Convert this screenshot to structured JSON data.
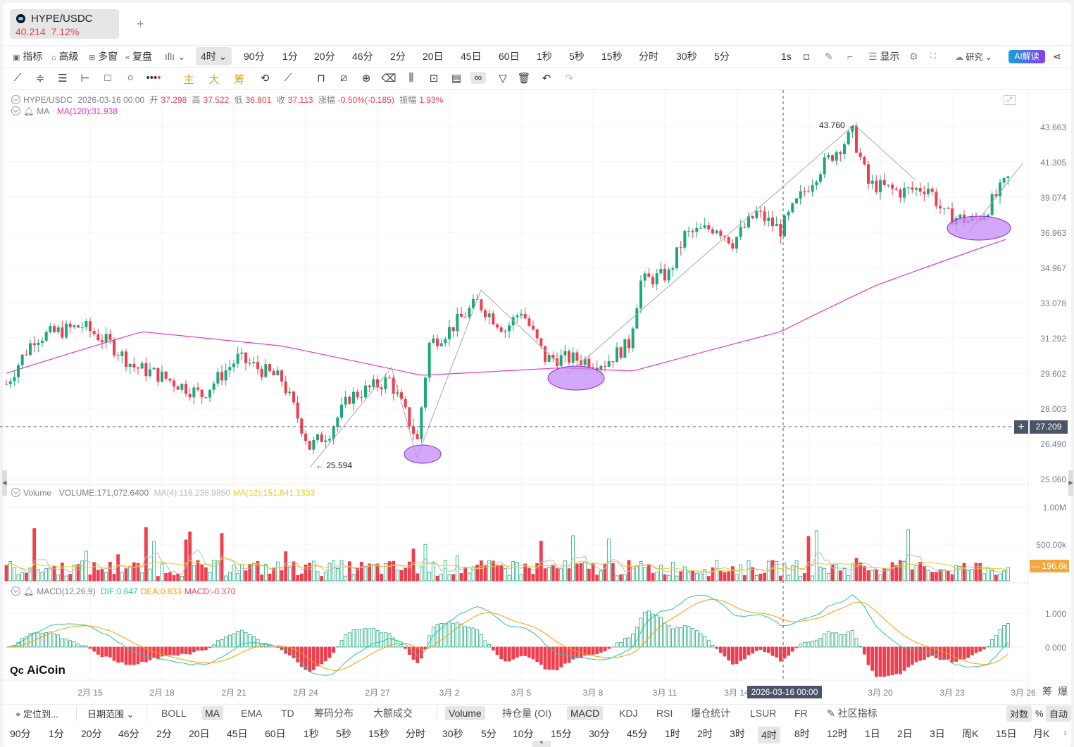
{
  "tab": {
    "symbol": "HYPE/USDC",
    "price": "40.214",
    "change": "7.12%",
    "add": "+"
  },
  "toolbar": {
    "left": [
      {
        "icon": "indicator-icon",
        "label": "指标"
      },
      {
        "icon": "advanced-icon",
        "label": "高级"
      },
      {
        "icon": "multi-window-icon",
        "label": "多窗"
      },
      {
        "icon": "replay-icon",
        "label": "复盘"
      }
    ],
    "chart_type_icon": "candle-type-icon",
    "interval_selected": "4时",
    "intervals": [
      "90分",
      "1分",
      "20分",
      "46分",
      "2分",
      "20日",
      "45日",
      "60日",
      "1秒",
      "5秒",
      "15秒",
      "分时",
      "30秒",
      "5分"
    ],
    "right": {
      "1s": "1s",
      "display": "显示",
      "research": "研究",
      "ai": "AI解读"
    }
  },
  "drawing_tools": {
    "main": "主",
    "big": "大",
    "chips": "筹"
  },
  "legend": {
    "symbol": "HYPE/USDC",
    "time": "2026-03-16 00:00",
    "open_label": "开",
    "open": "37.298",
    "high_label": "高",
    "high": "37.522",
    "low_label": "低",
    "low": "36.801",
    "close_label": "收",
    "close": "37.113",
    "change_label": "涨幅",
    "change": "-0.50%(-0.185)",
    "amp_label": "振幅",
    "amp": "1.93%",
    "ma_label": "MA",
    "ma120": "MA(120):31.938"
  },
  "volume_legend": {
    "label": "Volume",
    "volume": "VOLUME:171,072.6400",
    "ma4": "MA(4):116,238.9850",
    "ma12": "MA(12):151,841.1333"
  },
  "macd_legend": {
    "label": "MACD(12,26,9)",
    "dif": "DIF:0.647",
    "dea": "DEA:0.833",
    "macd": "MACD:-0.370"
  },
  "price_axis": [
    "43.663",
    "41.305",
    "39.074",
    "36.963",
    "34.967",
    "33.078",
    "31.292",
    "29.602",
    "28.003",
    "26.490",
    "25.060"
  ],
  "volume_axis": [
    "1.00M",
    "500.00k"
  ],
  "macd_axis": [
    "1.000",
    "0.000"
  ],
  "crosshair": {
    "price": "27.209",
    "time": "2026-03-16 00:00",
    "volume": "196.6k"
  },
  "annotations": {
    "high": "43.760 →",
    "low": "← 25.594"
  },
  "date_axis": [
    "2月 15",
    "2月 18",
    "2月 21",
    "2月 24",
    "2月 27",
    "3月 2",
    "3月 5",
    "3月 8",
    "3月 11",
    "3月 14",
    "3月 20",
    "3月 23",
    "3月 26"
  ],
  "axis_buttons": {
    "chips": "筹",
    "liq": "爆"
  },
  "watermark": "AiCoin",
  "bottom_indicators": {
    "locate": "定位到...",
    "range": "日期范围",
    "items": [
      "BOLL",
      "MA",
      "EMA",
      "TD",
      "筹码分布",
      "大额成交"
    ],
    "sub": [
      "Volume",
      "持仓量 (OI)",
      "MACD",
      "KDJ",
      "RSI",
      "爆仓统计",
      "LSUR",
      "FR"
    ],
    "community": "社区指标",
    "log": "对数",
    "pct": "%",
    "auto": "自动"
  },
  "bottom_intervals": [
    "90分",
    "1分",
    "20分",
    "46分",
    "2分",
    "20日",
    "45日",
    "60日",
    "1秒",
    "5秒",
    "15秒",
    "分时",
    "30秒",
    "5分",
    "10分",
    "15分",
    "30分",
    "45分",
    "1时",
    "2时",
    "3时",
    "4时",
    "8时",
    "12时",
    "1日",
    "2日",
    "3日",
    "周K",
    "15日",
    "月K"
  ],
  "colors": {
    "up": "#1aa97c",
    "down": "#ef3f4f",
    "ma120": "#e33cc1",
    "ma4": "#bbbbbb",
    "ma12": "#e6d21a",
    "dif": "#2bc6a0",
    "dea": "#f5a000",
    "highlight": "#c58bf5"
  },
  "chart_data": {
    "type": "candlestick",
    "scale": "log",
    "interval": "4h",
    "year": 2026,
    "price_path": [
      [
        "02-11 12",
        29.1
      ],
      [
        "02-12 16",
        31.3
      ],
      [
        "02-14 16",
        31.9
      ],
      [
        "02-15 20",
        31.0
      ],
      [
        "02-16 20",
        29.9
      ],
      [
        "02-17 16",
        29.6
      ],
      [
        "02-19 16",
        28.6
      ],
      [
        "02-21 04",
        30.3
      ],
      [
        "02-23 00",
        29.3
      ],
      [
        "02-24 04",
        26.35
      ],
      [
        "02-25 00",
        27.0
      ],
      [
        "02-25 20",
        28.5
      ],
      [
        "02-27 12",
        29.3
      ],
      [
        "02-28 08",
        27.4
      ],
      [
        "02-28 16",
        26.6
      ],
      [
        "03-01 04",
        31.0
      ],
      [
        "03-02 00",
        31.7
      ],
      [
        "03-03 04",
        33.1
      ],
      [
        "03-04 08",
        31.7
      ],
      [
        "03-05 00",
        32.7
      ],
      [
        "03-06 00",
        30.3
      ],
      [
        "03-07 00",
        30.3
      ],
      [
        "03-08 12",
        30.1
      ],
      [
        "03-09 12",
        31.0
      ],
      [
        "03-10 00",
        34.2
      ],
      [
        "03-11 04",
        34.6
      ],
      [
        "03-11 20",
        36.8
      ],
      [
        "03-13 04",
        37.3
      ],
      [
        "03-13 20",
        36.4
      ],
      [
        "03-14 20",
        38.1
      ],
      [
        "03-15 20",
        37.1
      ],
      [
        "03-16 16",
        39.1
      ],
      [
        "03-17 12",
        40.9
      ],
      [
        "03-18 20",
        43.2
      ],
      [
        "03-19 12",
        39.9
      ],
      [
        "03-20 20",
        39.4
      ],
      [
        "03-22 00",
        39.7
      ],
      [
        "03-22 16",
        38.0
      ],
      [
        "03-23 20",
        37.6
      ],
      [
        "03-24 08",
        38.1
      ],
      [
        "03-25 08",
        40.2
      ]
    ],
    "ma120_path": [
      [
        "02-11 12",
        29.6
      ],
      [
        "02-17 04",
        31.6
      ],
      [
        "02-23 00",
        30.9
      ],
      [
        "02-28 20",
        29.5
      ],
      [
        "03-06 16",
        29.85
      ],
      [
        "03-09 16",
        29.7
      ],
      [
        "03-15 20",
        31.6
      ],
      [
        "03-19 20",
        34.0
      ],
      [
        "03-25 08",
        36.6
      ]
    ]
  }
}
